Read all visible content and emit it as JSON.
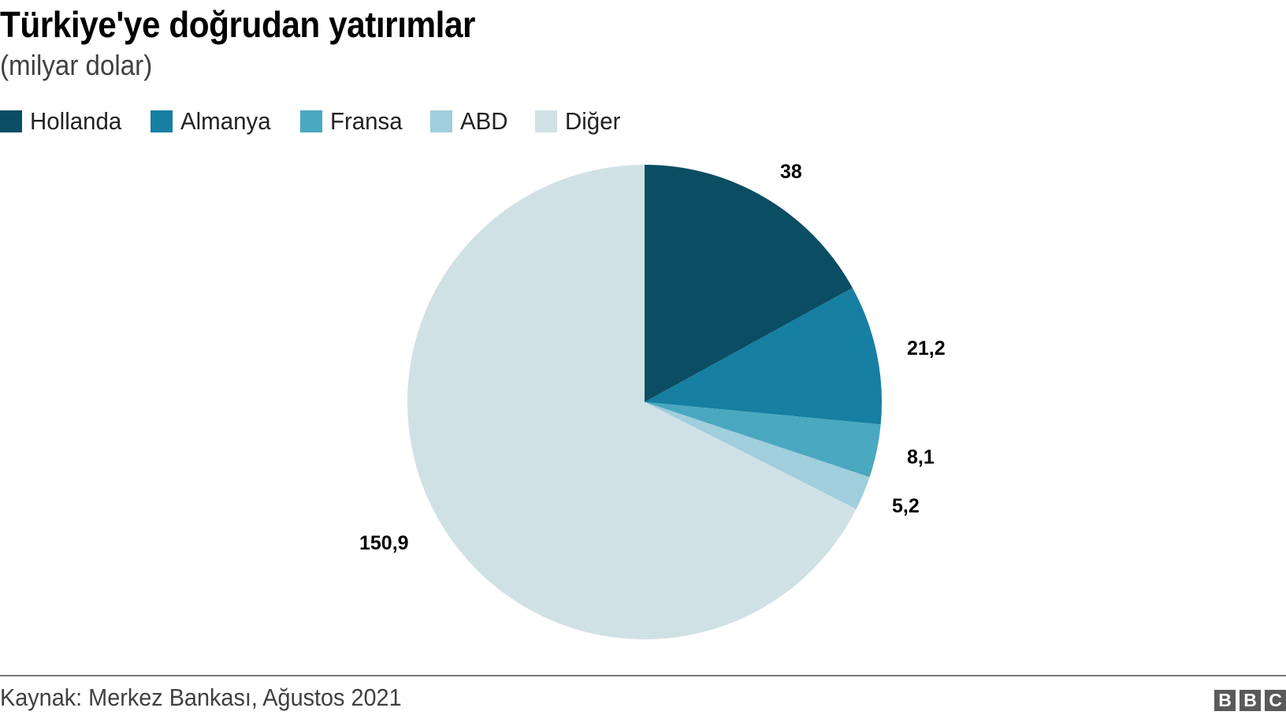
{
  "header": {
    "title": "Türkiye'ye doğrudan yatırımlar",
    "subtitle": "(milyar dolar)"
  },
  "legend": [
    {
      "label": "Hollanda",
      "color": "#0b4d63"
    },
    {
      "label": "Almanya",
      "color": "#167fa2"
    },
    {
      "label": "Fransa",
      "color": "#4aa8bf"
    },
    {
      "label": "ABD",
      "color": "#a1cedc"
    },
    {
      "label": "Diğer",
      "color": "#d0e1e6"
    }
  ],
  "labels": {
    "hollanda": "38",
    "almanya": "21,2",
    "fransa": "8,1",
    "abd": "5,2",
    "diger": "150,9"
  },
  "footer": {
    "source": "Kaynak: Merkez Bankası, Ağustos 2021",
    "logo": [
      "B",
      "B",
      "C"
    ]
  },
  "chart_data": {
    "type": "pie",
    "title": "Türkiye'ye doğrudan yatırımlar",
    "subtitle": "(milyar dolar)",
    "categories": [
      "Hollanda",
      "Almanya",
      "Fransa",
      "ABD",
      "Diğer"
    ],
    "values": [
      38,
      21.2,
      8.1,
      5.2,
      150.9
    ],
    "value_labels": [
      "38",
      "21,2",
      "8,1",
      "5,2",
      "150,9"
    ],
    "colors": [
      "#0b4d63",
      "#167fa2",
      "#4aa8bf",
      "#a1cedc",
      "#d0e1e6"
    ],
    "start_angle": "12 o'clock",
    "direction": "clockwise",
    "legend_position": "top",
    "source": "Kaynak: Merkez Bankası, Ağustos 2021"
  }
}
